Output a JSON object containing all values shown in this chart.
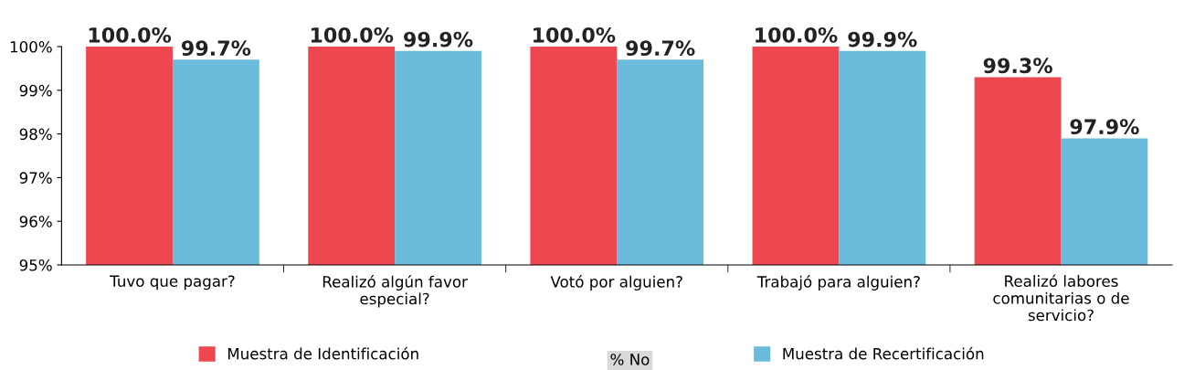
{
  "chart_data": {
    "type": "bar",
    "legend_title": "% No",
    "categories": [
      "Tuvo que pagar?",
      "Realizó algún favor\nespecial?",
      "Votó por alguien?",
      "Trabajó para alguien?",
      "Realizó labores\ncomunitarias o de\nservicio?"
    ],
    "series": [
      {
        "name": "Muestra de Identificación",
        "color": "#ef4750",
        "values": [
          100.0,
          100.0,
          100.0,
          100.0,
          99.3
        ],
        "value_labels": [
          "100.0%",
          "100.0%",
          "100.0%",
          "100.0%",
          "99.3%"
        ]
      },
      {
        "name": "Muestra de Recertificación",
        "color": "#6bbbdc",
        "values": [
          99.7,
          99.9,
          99.7,
          99.9,
          97.9
        ],
        "value_labels": [
          "99.7%",
          "99.9%",
          "99.7%",
          "99.9%",
          "97.9%"
        ]
      }
    ],
    "ylim": [
      95,
      100
    ],
    "yticks": [
      {
        "value": 95,
        "label": "95%"
      },
      {
        "value": 96,
        "label": "96%"
      },
      {
        "value": 97,
        "label": "97%"
      },
      {
        "value": 98,
        "label": "98%"
      },
      {
        "value": 99,
        "label": "99%"
      },
      {
        "value": 100,
        "label": "100%"
      }
    ],
    "grid": false,
    "legend": "bottom"
  }
}
